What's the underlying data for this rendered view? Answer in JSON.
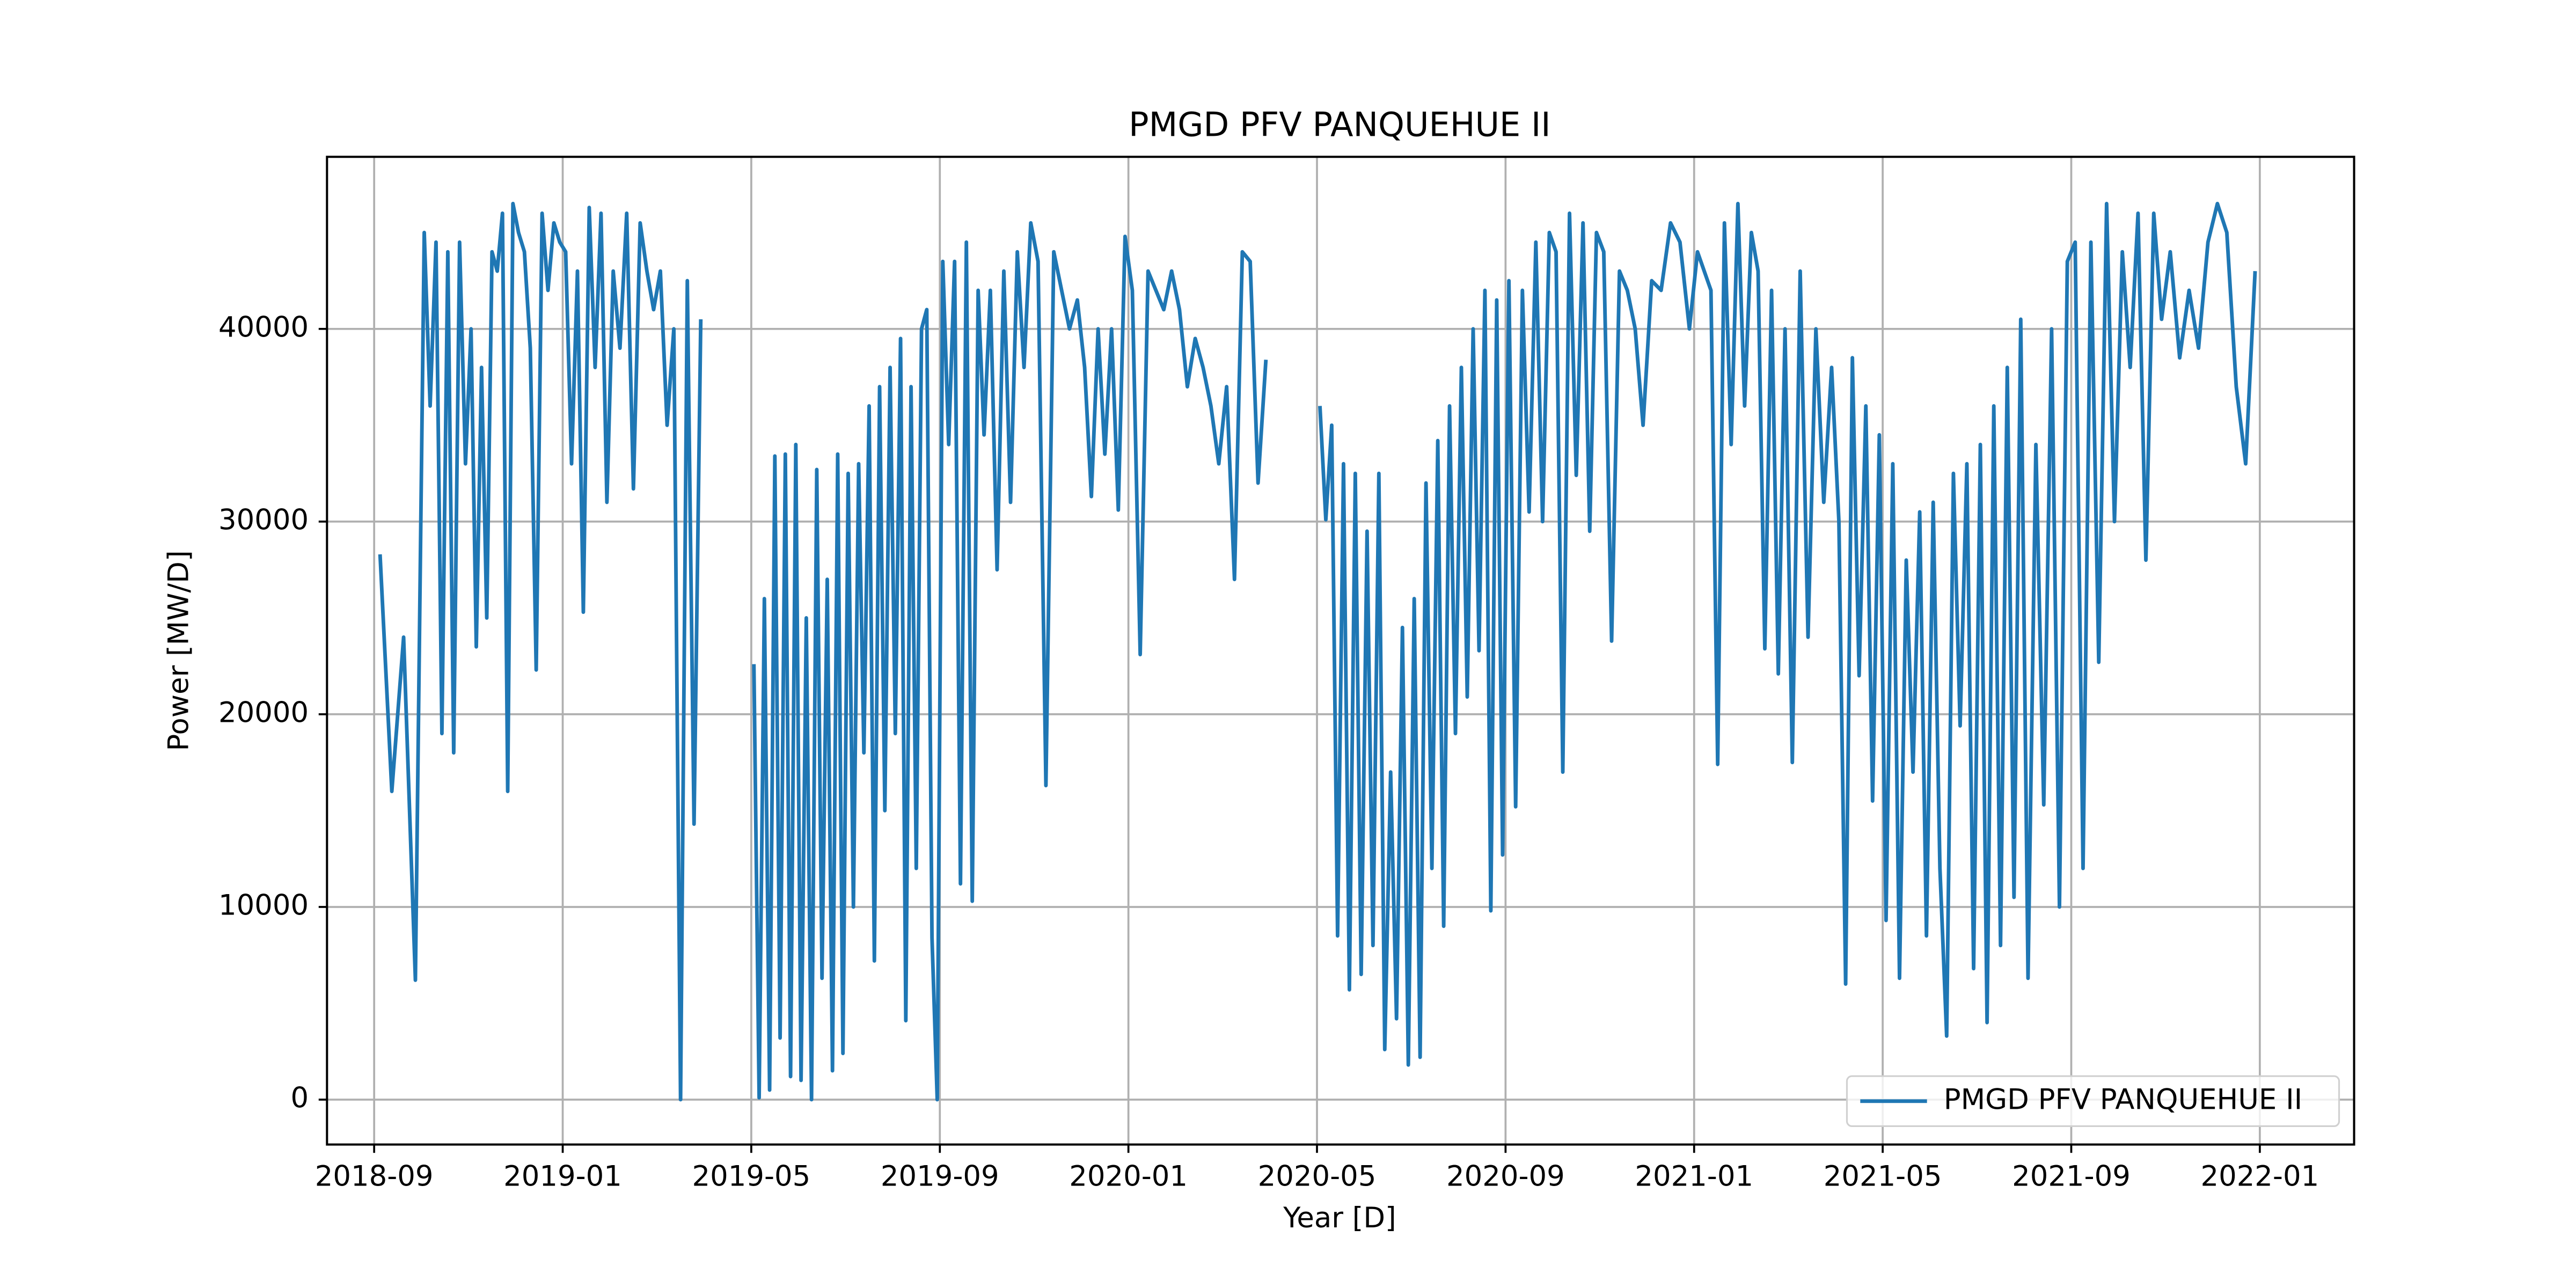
{
  "chart_data": {
    "type": "line",
    "title": "PMGD PFV PANQUEHUE II",
    "x_label": "Year [D]",
    "y_label": "Power [MW/D]",
    "x": [
      "2018-09",
      "2018-09",
      "2018-09",
      "2018-09",
      "2018-10",
      "2018-10",
      "2018-10",
      "2018-10",
      "2018-10",
      "2018-10",
      "2018-10",
      "2018-10",
      "2018-11",
      "2018-11",
      "2018-11",
      "2018-11",
      "2018-11",
      "2018-11",
      "2018-11",
      "2018-11",
      "2018-11",
      "2018-12",
      "2018-12",
      "2018-12",
      "2018-12",
      "2018-12",
      "2018-12",
      "2018-12",
      "2018-12",
      "2019-01",
      "2019-01",
      "2019-01",
      "2019-01",
      "2019-01",
      "2019-01",
      "2019-01",
      "2019-01",
      "2019-02",
      "2019-02",
      "2019-02",
      "2019-02",
      "2019-02",
      "2019-02",
      "2019-02",
      "2019-03",
      "2019-03",
      "2019-03",
      "2019-03",
      "2019-03",
      "2019-03",
      "2019-03",
      "2019-04",
      "2019-05",
      "2019-05",
      "2019-05",
      "2019-05",
      "2019-05",
      "2019-05",
      "2019-05",
      "2019-05",
      "2019-05",
      "2019-06",
      "2019-06",
      "2019-06",
      "2019-06",
      "2019-06",
      "2019-06",
      "2019-06",
      "2019-06",
      "2019-06",
      "2019-07",
      "2019-07",
      "2019-07",
      "2019-07",
      "2019-07",
      "2019-07",
      "2019-07",
      "2019-07",
      "2019-07",
      "2019-08",
      "2019-08",
      "2019-08",
      "2019-08",
      "2019-08",
      "2019-08",
      "2019-08",
      "2019-08",
      "2019-08",
      "2019-09",
      "2019-09",
      "2019-09",
      "2019-09",
      "2019-09",
      "2019-09",
      "2019-09",
      "2019-09",
      "2019-10",
      "2019-10",
      "2019-10",
      "2019-10",
      "2019-10",
      "2019-10",
      "2019-10",
      "2019-11",
      "2019-11",
      "2019-11",
      "2019-11",
      "2019-11",
      "2019-11",
      "2019-12",
      "2019-12",
      "2019-12",
      "2019-12",
      "2019-12",
      "2019-12",
      "2019-12",
      "2020-01",
      "2020-01",
      "2020-01",
      "2020-01",
      "2020-01",
      "2020-01",
      "2020-02",
      "2020-02",
      "2020-02",
      "2020-02",
      "2020-02",
      "2020-02",
      "2020-03",
      "2020-03",
      "2020-03",
      "2020-03",
      "2020-03",
      "2020-03",
      "2020-04",
      "2020-05",
      "2020-05",
      "2020-05",
      "2020-05",
      "2020-05",
      "2020-05",
      "2020-05",
      "2020-05",
      "2020-06",
      "2020-06",
      "2020-06",
      "2020-06",
      "2020-06",
      "2020-06",
      "2020-06",
      "2020-06",
      "2020-07",
      "2020-07",
      "2020-07",
      "2020-07",
      "2020-07",
      "2020-07",
      "2020-07",
      "2020-07",
      "2020-08",
      "2020-08",
      "2020-08",
      "2020-08",
      "2020-08",
      "2020-08",
      "2020-08",
      "2020-08",
      "2020-09",
      "2020-09",
      "2020-09",
      "2020-09",
      "2020-09",
      "2020-09",
      "2020-09",
      "2020-10",
      "2020-10",
      "2020-10",
      "2020-10",
      "2020-10",
      "2020-10",
      "2020-10",
      "2020-11",
      "2020-11",
      "2020-11",
      "2020-11",
      "2020-11",
      "2020-11",
      "2020-12",
      "2020-12",
      "2020-12",
      "2020-12",
      "2020-12",
      "2021-01",
      "2021-01",
      "2021-01",
      "2021-01",
      "2021-01",
      "2021-01",
      "2021-01",
      "2021-02",
      "2021-02",
      "2021-02",
      "2021-02",
      "2021-02",
      "2021-02",
      "2021-02",
      "2021-03",
      "2021-03",
      "2021-03",
      "2021-03",
      "2021-03",
      "2021-03",
      "2021-04",
      "2021-04",
      "2021-04",
      "2021-04",
      "2021-04",
      "2021-04",
      "2021-04",
      "2021-05",
      "2021-05",
      "2021-05",
      "2021-05",
      "2021-05",
      "2021-05",
      "2021-05",
      "2021-06",
      "2021-06",
      "2021-06",
      "2021-06",
      "2021-06",
      "2021-06",
      "2021-06",
      "2021-07",
      "2021-07",
      "2021-07",
      "2021-07",
      "2021-07",
      "2021-07",
      "2021-07",
      "2021-08",
      "2021-08",
      "2021-08",
      "2021-08",
      "2021-08",
      "2021-08",
      "2021-09",
      "2021-09",
      "2021-09",
      "2021-09",
      "2021-09",
      "2021-09",
      "2021-10",
      "2021-10",
      "2021-10",
      "2021-10",
      "2021-10",
      "2021-10",
      "2021-11",
      "2021-11",
      "2021-11",
      "2021-11",
      "2021-11",
      "2021-12",
      "2021-12",
      "2021-12",
      "2021-12",
      "2021-12"
    ],
    "series": [
      {
        "name": "PMGD PFV PANQUEHUE II",
        "color": "#1f77b4",
        "values": [
          28300,
          16000,
          24000,
          6200,
          45000,
          36000,
          44500,
          19000,
          44000,
          18000,
          44500,
          33000,
          40000,
          23500,
          38000,
          25000,
          44000,
          43000,
          46000,
          16000,
          46500,
          45000,
          44000,
          39000,
          22300,
          46000,
          42000,
          45500,
          44500,
          44000,
          33000,
          43000,
          25300,
          46300,
          38000,
          46000,
          31000,
          43000,
          39000,
          46000,
          31700,
          45500,
          43000,
          41000,
          43000,
          35000,
          40000,
          0,
          42500,
          14300,
          40500,
          null,
          22600,
          100,
          26000,
          500,
          33400,
          3200,
          33500,
          1200,
          34000,
          1000,
          25000,
          0,
          32700,
          6300,
          27000,
          1500,
          33500,
          2400,
          32500,
          10000,
          33000,
          18000,
          36000,
          7200,
          37000,
          15000,
          38000,
          19000,
          39500,
          4100,
          37000,
          12000,
          40000,
          41000,
          8400,
          0,
          43500,
          34000,
          43500,
          11200,
          44500,
          10300,
          42000,
          34500,
          42000,
          27500,
          43000,
          31000,
          44000,
          38000,
          45500,
          43500,
          16300,
          44000,
          42000,
          40000,
          41500,
          38000,
          31300,
          40000,
          33500,
          40000,
          30600,
          44800,
          42000,
          23100,
          43000,
          42000,
          41000,
          43000,
          41000,
          37000,
          39500,
          38000,
          36000,
          33000,
          37000,
          27000,
          44000,
          43500,
          32000,
          38400,
          null,
          36000,
          30100,
          35000,
          8500,
          33000,
          5700,
          32500,
          6500,
          29500,
          8000,
          32500,
          2600,
          17000,
          4200,
          24500,
          1800,
          26000,
          2200,
          32000,
          12000,
          34200,
          9000,
          36000,
          19000,
          38000,
          20900,
          40000,
          23300,
          42000,
          9800,
          41500,
          12700,
          42500,
          15200,
          42000,
          30500,
          44500,
          30000,
          45000,
          44000,
          17000,
          46000,
          32400,
          45500,
          29500,
          45000,
          44000,
          23800,
          43000,
          42000,
          40000,
          35000,
          42500,
          42000,
          45500,
          44500,
          40000,
          44000,
          43000,
          42000,
          17400,
          45500,
          34000,
          46500,
          36000,
          45000,
          43000,
          23400,
          42000,
          22100,
          40000,
          17500,
          43000,
          24000,
          40000,
          31000,
          38000,
          30000,
          6000,
          38500,
          22000,
          36000,
          15500,
          34500,
          9300,
          33000,
          6300,
          28000,
          17000,
          30500,
          8500,
          31000,
          12000,
          3300,
          32500,
          19400,
          33000,
          6800,
          34000,
          4000,
          36000,
          8000,
          38000,
          10500,
          40500,
          6300,
          34000,
          15300,
          40000,
          10000,
          43500,
          44500,
          12000,
          44500,
          22700,
          46500,
          30000,
          44000,
          38000,
          46000,
          28000,
          46000,
          40500,
          44000,
          38500,
          42000,
          39000,
          44500,
          46500,
          45000,
          37000,
          33000,
          43000
        ]
      }
    ],
    "xlim": [
      "2018-08",
      "2022-03"
    ],
    "xticks": [
      "2018-09",
      "2019-01",
      "2019-05",
      "2019-09",
      "2020-01",
      "2020-05",
      "2020-09",
      "2021-01",
      "2021-05",
      "2021-09",
      "2022-01"
    ],
    "ylim": [
      -2330,
      48930
    ],
    "yticks": [
      0,
      10000,
      20000,
      30000,
      40000
    ],
    "grid": true,
    "legend": "lower right"
  }
}
